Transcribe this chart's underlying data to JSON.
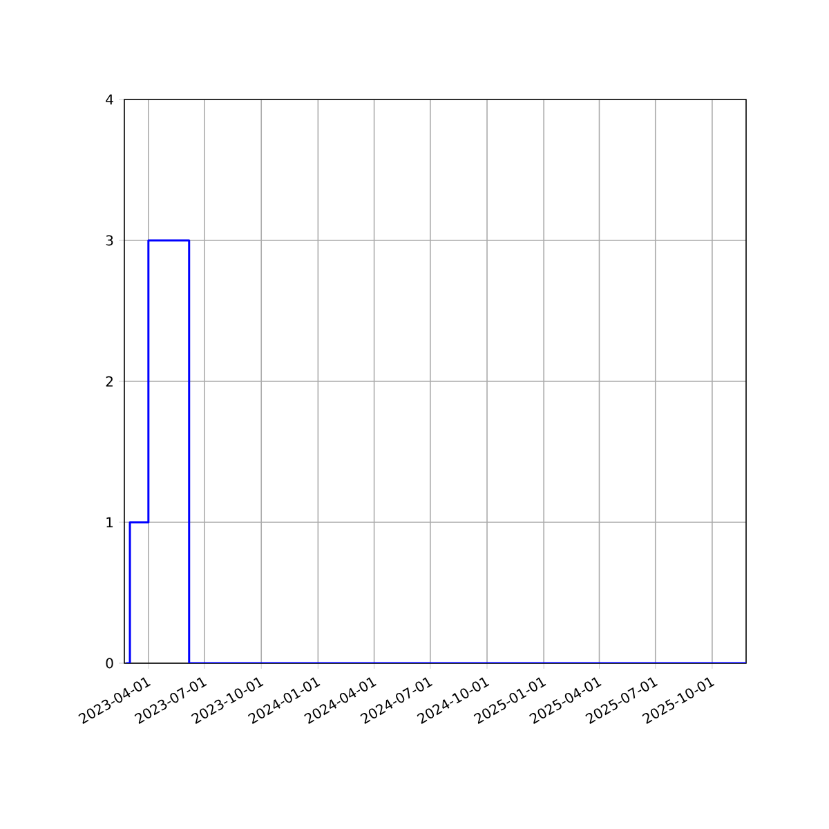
{
  "chart_data": {
    "type": "step",
    "x": [
      "2023-02-24",
      "2023-03-02",
      "2023-04-01",
      "2023-06-06",
      "2025-11-25"
    ],
    "series": [
      {
        "color": "#0000ff",
        "values": [
          0,
          1,
          3,
          0,
          0
        ]
      }
    ],
    "xlim": [
      "2023-02-21",
      "2025-11-25"
    ],
    "xticks": [
      "2023-04-01",
      "2023-07-01",
      "2023-10-01",
      "2024-01-01",
      "2024-04-01",
      "2024-07-01",
      "2024-10-01",
      "2025-01-01",
      "2025-04-01",
      "2025-07-01",
      "2025-10-01"
    ],
    "ylim": [
      0,
      4
    ],
    "yticks": [
      0,
      1,
      2,
      3,
      4
    ],
    "grid": true
  }
}
